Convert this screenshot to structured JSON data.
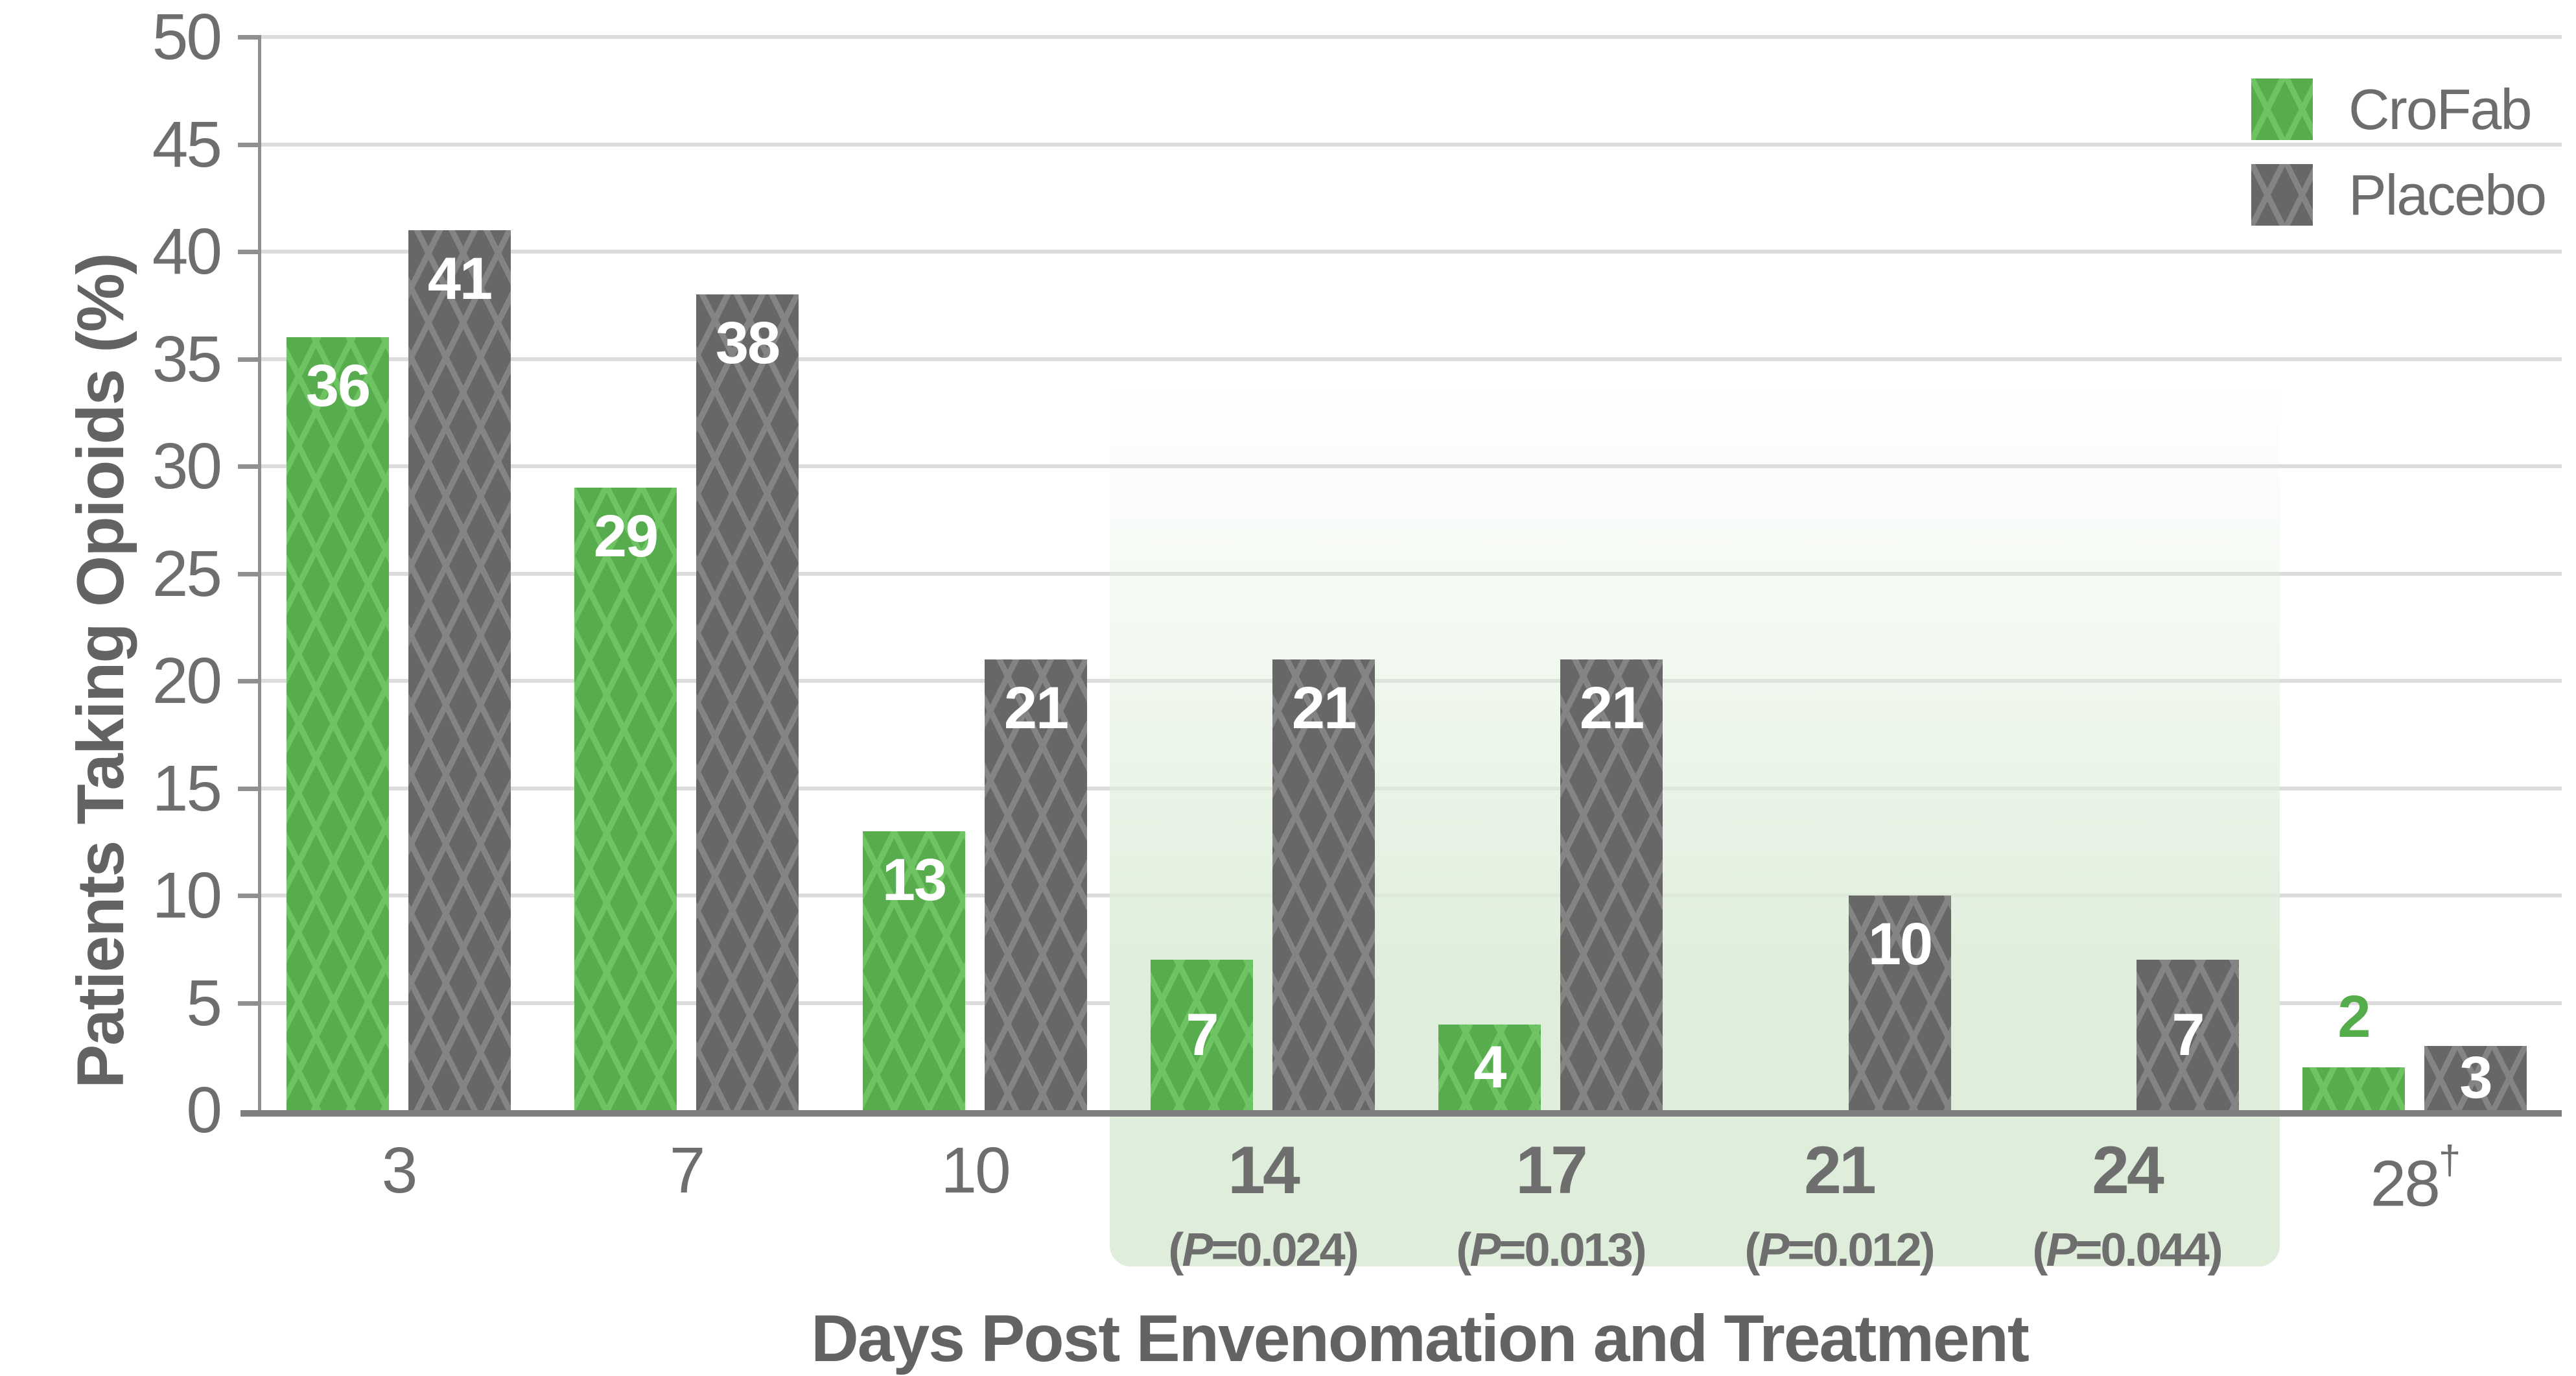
{
  "chart_data": {
    "type": "bar",
    "title": "",
    "categories": [
      "3",
      "7",
      "10",
      "14",
      "17",
      "21",
      "24",
      "28†"
    ],
    "series": [
      {
        "name": "CroFab",
        "values": [
          36,
          29,
          13,
          7,
          4,
          0,
          0,
          2
        ]
      },
      {
        "name": "Placebo",
        "values": [
          41,
          38,
          21,
          21,
          21,
          10,
          7,
          3
        ]
      }
    ],
    "bar_value_labels": {
      "CroFab": [
        "36",
        "29",
        "13",
        "7",
        "4",
        "",
        "",
        "2"
      ],
      "Placebo": [
        "41",
        "38",
        "21",
        "21",
        "21",
        "10",
        "7",
        "3"
      ]
    },
    "p_labels": [
      "",
      "",
      "",
      "(P=0.024)",
      "(P=0.013)",
      "(P=0.012)",
      "(P=0.044)",
      ""
    ],
    "highlighted_categories": [
      "14",
      "17",
      "21",
      "24"
    ],
    "xlabel": "Days Post Envenomation and Treatment",
    "ylabel": "Patients Taking Opioids (%)",
    "ylim": [
      0,
      50
    ],
    "y_tick_labels": [
      "0",
      "5",
      "10",
      "15",
      "20",
      "25",
      "30",
      "35",
      "40",
      "45",
      "50"
    ],
    "grid": true,
    "legend_position": "top-right"
  },
  "legend": {
    "items": [
      {
        "label": "CroFab",
        "key": "crofab"
      },
      {
        "label": "Placebo",
        "key": "placebo"
      }
    ]
  },
  "colors": {
    "crofab_base": "#57ad4d",
    "crofab_lattice": "#6ec463",
    "crofab_label_above": "#54ac4b",
    "placebo_base": "#676767",
    "placebo_lattice": "#848484",
    "grid": "#dcdcdc",
    "axis": "#8f8f8f",
    "baseline": "#7f7f7f",
    "tick_text": "#6e6e6e",
    "title_text": "#636363",
    "legend_text": "#6d6d6d",
    "bar_label_text": "#ffffff",
    "highlight": "#deeeda"
  }
}
